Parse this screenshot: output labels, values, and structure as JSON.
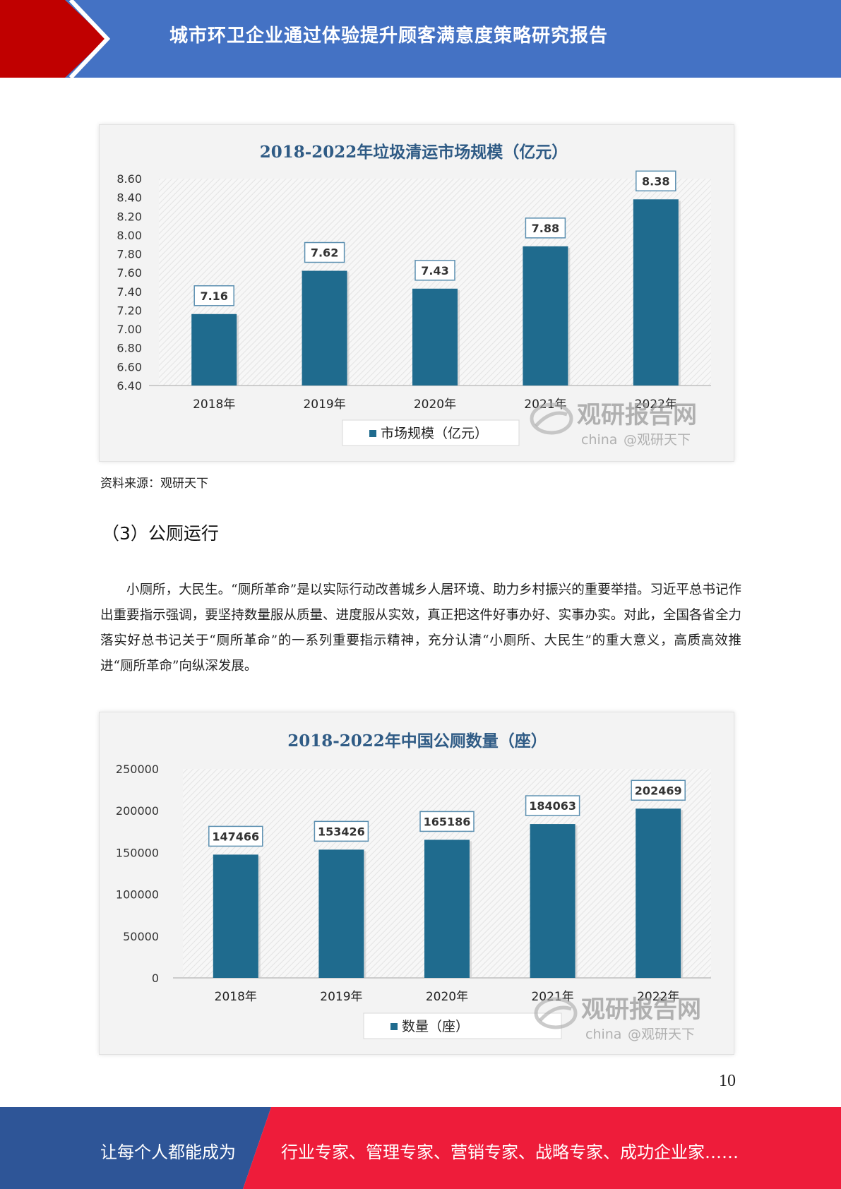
{
  "header": {
    "title": "城市环卫企业通过体验提升顾客满意度策略研究报告",
    "colors": {
      "band": "#4472c4",
      "accent": "#c00000"
    }
  },
  "chart_data": [
    {
      "type": "bar",
      "title": "2018-2022年垃圾清运市场规模（亿元）",
      "categories": [
        "2018年",
        "2019年",
        "2020年",
        "2021年",
        "2022年"
      ],
      "series": [
        {
          "name": "市场规模（亿元）",
          "values": [
            7.16,
            7.62,
            7.43,
            7.88,
            8.38
          ]
        }
      ],
      "value_labels": [
        "7.16",
        "7.62",
        "7.43",
        "7.88",
        "8.38"
      ],
      "y_ticks": [
        "8.60",
        "8.40",
        "8.20",
        "8.00",
        "7.80",
        "7.60",
        "7.40",
        "7.20",
        "7.00",
        "6.80",
        "6.60",
        "6.40"
      ],
      "ylim": [
        6.4,
        8.6
      ],
      "legend": "bottom",
      "bar_color": "#1f6b8e",
      "grid": false
    },
    {
      "type": "bar",
      "title": "2018-2022年中国公厕数量（座）",
      "categories": [
        "2018年",
        "2019年",
        "2020年",
        "2021年",
        "2022年"
      ],
      "series": [
        {
          "name": "数量（座）",
          "values": [
            147466,
            153426,
            165186,
            184063,
            202469
          ]
        }
      ],
      "value_labels": [
        "147466",
        "153426",
        "165186",
        "184063",
        "202469"
      ],
      "y_ticks": [
        "250000",
        "200000",
        "150000",
        "100000",
        "50000",
        "0"
      ],
      "ylim": [
        0,
        250000
      ],
      "legend": "bottom",
      "bar_color": "#1f6b8e",
      "grid": false
    }
  ],
  "watermark": {
    "brand": "观研报告网",
    "sub": "china",
    "handle": "@观研天下"
  },
  "source_note": "资料来源：观研天下",
  "section": {
    "heading": "（3）公厕运行",
    "paragraph": "小厕所，大民生。“厕所革命”是以实际行动改善城乡人居环境、助力乡村振兴的重要举措。习近平总书记作出重要指示强调，要坚持数量服从质量、进度服从实效，真正把这件好事办好、实事办实。对此，全国各省全力落实好总书记关于“厕所革命”的一系列重要指示精神，充分认清“小厕所、大民生”的重大意义，高质高效推进“厕所革命”向纵深发展。"
  },
  "page_number": "10",
  "footer": {
    "left": "让每个人都能成为",
    "right": "行业专家、管理专家、营销专家、战略专家、成功企业家……",
    "colors": {
      "left": "#2e5597",
      "right": "#ee1c3a"
    }
  }
}
